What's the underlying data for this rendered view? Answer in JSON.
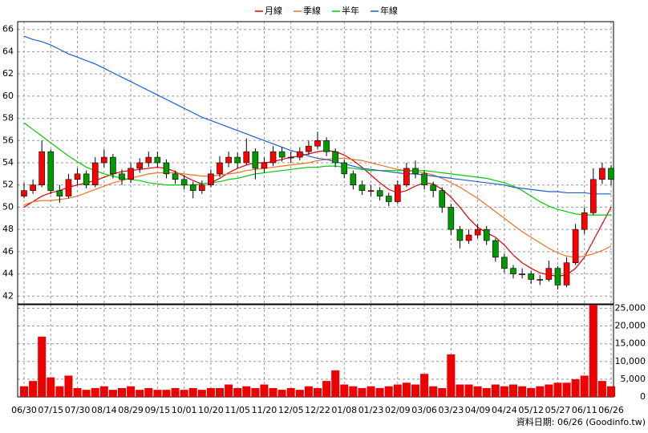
{
  "chart_data": {
    "type": "candlestick",
    "categories": [
      "06/30",
      null,
      null,
      "07/15",
      null,
      null,
      "07/30",
      null,
      null,
      "08/14",
      null,
      null,
      "08/29",
      null,
      null,
      "09/15",
      null,
      null,
      "10/01",
      null,
      null,
      "10/20",
      null,
      null,
      "11/05",
      null,
      null,
      "11/20",
      null,
      null,
      "12/05",
      null,
      null,
      "12/22",
      null,
      null,
      "01/08",
      null,
      null,
      "01/23",
      null,
      null,
      "02/09",
      null,
      null,
      "03/06",
      null,
      null,
      "03/23",
      null,
      null,
      "04/09",
      null,
      null,
      "04/24",
      null,
      null,
      "05/12",
      null,
      null,
      "05/27",
      null,
      null,
      "06/11",
      null,
      null,
      "06/26"
    ],
    "open": [
      51,
      51.5,
      52,
      55,
      51.5,
      51,
      52.5,
      53,
      52,
      54,
      54.5,
      53,
      52.5,
      53.5,
      54,
      54.5,
      54,
      53,
      52.5,
      52,
      51.5,
      52,
      53,
      54,
      54.5,
      54,
      55,
      53.5,
      54,
      55,
      54.5,
      54.5,
      55,
      55.5,
      56,
      55,
      54,
      53,
      52,
      51.5,
      51.5,
      51,
      50.5,
      52,
      53.5,
      53,
      52,
      51.5,
      50,
      48,
      47,
      47.5,
      48,
      47,
      45.5,
      44.5,
      44,
      44,
      43.5,
      43.5,
      44.5,
      43,
      45,
      48,
      49.5,
      52.5,
      53.5
    ],
    "high": [
      52.2,
      52.5,
      56,
      55.2,
      52,
      53,
      53.5,
      53.3,
      54.5,
      55.2,
      54.8,
      53.4,
      54,
      54.4,
      55,
      55,
      54.3,
      53.3,
      52.9,
      52.3,
      52.4,
      53.4,
      54.6,
      55,
      54.9,
      56.2,
      55.3,
      54.5,
      55.5,
      55.4,
      55,
      55.4,
      56,
      56.8,
      56.3,
      55.3,
      54.3,
      53.3,
      52.4,
      52,
      51.8,
      51.3,
      52.4,
      54,
      54.2,
      53.3,
      52.3,
      51.8,
      50.3,
      48.3,
      48,
      48.5,
      48.3,
      47.2,
      45.8,
      44.8,
      44.5,
      44.3,
      43.9,
      45.2,
      44.7,
      45.5,
      48.5,
      50,
      53.5,
      54,
      53.8
    ],
    "low": [
      50.8,
      51.2,
      51.8,
      51.2,
      50.4,
      50.8,
      52,
      51.7,
      51.8,
      53.6,
      52.6,
      52,
      52.2,
      53.1,
      53.6,
      53.6,
      52.6,
      52.1,
      51.6,
      50.8,
      51.2,
      51.8,
      52.7,
      53.6,
      53.5,
      53.8,
      52.5,
      53.1,
      53.7,
      54.1,
      54,
      54.2,
      54.7,
      55.2,
      54.6,
      53.6,
      52.6,
      51.6,
      51.1,
      51,
      50.6,
      50.1,
      50.3,
      51.8,
      52.6,
      51.6,
      50.9,
      49.5,
      47.5,
      46.3,
      46.7,
      47.2,
      46.6,
      45.1,
      44.1,
      43.6,
      43.6,
      43.1,
      43,
      43.3,
      42.6,
      42.8,
      44.8,
      47.6,
      49.3,
      52.1,
      52
    ],
    "close": [
      51.5,
      52,
      55,
      51.5,
      51,
      52.5,
      53,
      52,
      54,
      54.5,
      53,
      52.5,
      53.5,
      54,
      54.5,
      54,
      53,
      52.5,
      52,
      51.5,
      52,
      53,
      54,
      54.5,
      54,
      55,
      53.5,
      54,
      55,
      54.5,
      54.5,
      55,
      55.5,
      56,
      55,
      54,
      53,
      52,
      51.5,
      51.5,
      51,
      50.5,
      52,
      53.5,
      53,
      52,
      51.5,
      50,
      48,
      47,
      47.5,
      48,
      47,
      45.5,
      44.5,
      44,
      44,
      43.5,
      43.5,
      44.5,
      43,
      45,
      48,
      49.5,
      52.5,
      53.5,
      52.5
    ],
    "up_color": "#ff0000",
    "down_color": "#009900",
    "ylim": [
      41.3,
      66.7
    ],
    "yticks": [
      42,
      44,
      46,
      48,
      50,
      52,
      54,
      56,
      58,
      60,
      62,
      64,
      66
    ],
    "grid": true,
    "series": [
      {
        "name": "月線",
        "color": "#dd0000",
        "values": [
          50,
          50.5,
          51,
          51.3,
          51.5,
          51.8,
          52,
          52.2,
          52.4,
          52.7,
          53,
          53.2,
          53.3,
          53.4,
          53.5,
          53.6,
          53.5,
          53.2,
          52.8,
          52.4,
          52.1,
          52.2,
          52.6,
          53.1,
          53.5,
          53.8,
          54,
          54,
          54.1,
          54.3,
          54.5,
          54.6,
          54.8,
          55,
          55.1,
          55,
          54.7,
          54.2,
          53.6,
          52.9,
          52.2,
          51.6,
          51.3,
          51.5,
          51.9,
          52.2,
          52.1,
          51.6,
          50.9,
          50,
          49,
          48.2,
          47.7,
          47.3,
          46.6,
          45.7,
          45,
          44.5,
          44.1,
          43.9,
          43.8,
          43.9,
          44.5,
          45.5,
          47,
          48.5,
          50
        ]
      },
      {
        "name": "季線",
        "color": "#f07020",
        "values": [
          50.2,
          50.5,
          50.6,
          50.6,
          50.7,
          50.8,
          51,
          51.3,
          51.6,
          51.9,
          52.2,
          52.4,
          52.6,
          52.8,
          53,
          53.1,
          53.1,
          53.1,
          53,
          52.9,
          52.8,
          52.8,
          52.9,
          53,
          53.1,
          53.3,
          53.4,
          53.5,
          53.6,
          53.7,
          53.8,
          53.9,
          54,
          54.2,
          54.3,
          54.4,
          54.4,
          54.3,
          54.2,
          54,
          53.8,
          53.6,
          53.4,
          53.3,
          53.2,
          53.1,
          52.9,
          52.6,
          52.2,
          51.8,
          51.3,
          50.8,
          50.2,
          49.6,
          49,
          48.4,
          47.8,
          47.3,
          46.8,
          46.3,
          45.9,
          45.6,
          45.5,
          45.6,
          45.8,
          46.1,
          46.5
        ]
      },
      {
        "name": "半年",
        "color": "#00cc00",
        "values": [
          57.6,
          57,
          56.4,
          55.8,
          55.2,
          54.6,
          54.1,
          53.6,
          53.3,
          53,
          52.8,
          52.6,
          52.5,
          52.4,
          52.2,
          52.1,
          52,
          52,
          52,
          52,
          52.1,
          52.2,
          52.3,
          52.5,
          52.6,
          52.8,
          53,
          53.1,
          53.2,
          53.3,
          53.4,
          53.5,
          53.6,
          53.6,
          53.7,
          53.7,
          53.6,
          53.5,
          53.4,
          53.3,
          53.3,
          53.3,
          53.3,
          53.3,
          53.3,
          53.3,
          53.2,
          53.1,
          53,
          52.9,
          52.8,
          52.7,
          52.6,
          52.4,
          52.2,
          51.9,
          51.5,
          51,
          50.5,
          50.1,
          49.8,
          49.6,
          49.4,
          49.3,
          49.3,
          49.3,
          49.3
        ]
      },
      {
        "name": "年線",
        "color": "#1f5fcc",
        "values": [
          65.4,
          65.1,
          64.9,
          64.6,
          64.2,
          63.8,
          63.5,
          63.2,
          62.9,
          62.5,
          62.1,
          61.7,
          61.3,
          60.9,
          60.5,
          60.1,
          59.7,
          59.3,
          58.9,
          58.5,
          58.1,
          57.8,
          57.5,
          57.2,
          56.9,
          56.6,
          56.3,
          56,
          55.7,
          55.4,
          55.1,
          54.9,
          54.6,
          54.4,
          54.3,
          54.1,
          53.9,
          53.7,
          53.5,
          53.4,
          53.3,
          53.2,
          53.1,
          53,
          53,
          52.9,
          52.8,
          52.7,
          52.6,
          52.5,
          52.4,
          52.3,
          52.2,
          52.1,
          52,
          51.8,
          51.7,
          51.6,
          51.5,
          51.4,
          51.4,
          51.3,
          51.3,
          51.3,
          51.2,
          51.2,
          51.2
        ]
      }
    ],
    "volume": {
      "color": "#ee0000",
      "values": [
        3000,
        4500,
        17000,
        5500,
        3000,
        6000,
        2500,
        2000,
        2500,
        3000,
        2000,
        2500,
        3000,
        2000,
        2500,
        2000,
        2000,
        2500,
        2000,
        2500,
        2000,
        2500,
        2500,
        3500,
        2500,
        3000,
        2500,
        3500,
        2500,
        2000,
        2500,
        2000,
        3000,
        2500,
        4500,
        7500,
        3500,
        3000,
        2500,
        3000,
        2500,
        3000,
        3500,
        4000,
        3500,
        6500,
        3000,
        2500,
        12000,
        3500,
        3500,
        3000,
        2500,
        3500,
        3000,
        3500,
        3000,
        2500,
        3000,
        3500,
        4000,
        4000,
        5000,
        6000,
        26000,
        4500,
        3000
      ],
      "ylim": [
        0,
        26000
      ],
      "yticks": [
        0,
        {
          "value": 5000,
          "label": "5,000"
        },
        {
          "value": 10000,
          "label": "10,000"
        },
        {
          "value": 15000,
          "label": "15,000"
        },
        {
          "value": 20000,
          "label": "20,000"
        },
        {
          "value": 25000,
          "label": "25,000"
        }
      ]
    },
    "source": "資料日期: 06/26 (Goodinfo.tw)"
  }
}
